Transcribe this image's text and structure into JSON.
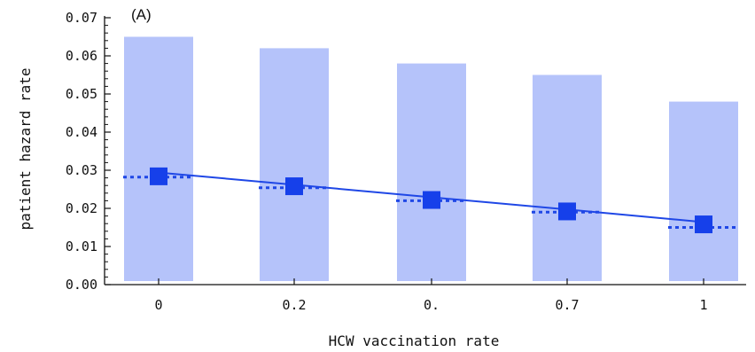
{
  "chart_data": {
    "type": "bar",
    "panel_label": "(A)",
    "xlabel": "HCW vaccination rate",
    "ylabel": "patient hazard rate",
    "categories": [
      "0",
      "0.2",
      "0.",
      "0.7",
      "1"
    ],
    "ylim": [
      0,
      0.07
    ],
    "yticks": [
      "0.00",
      "0.01",
      "0.02",
      "0.03",
      "0.04",
      "0.05",
      "0.06",
      "0.07"
    ],
    "grid": false,
    "legend": "none",
    "series": [
      {
        "kind": "bar",
        "values": [
          0.065,
          0.062,
          0.058,
          0.055,
          0.048
        ]
      },
      {
        "kind": "square-markers",
        "values": [
          0.0284,
          0.0258,
          0.0222,
          0.0192,
          0.0158
        ]
      },
      {
        "kind": "fitted-line",
        "values": [
          0.0294,
          0.0262,
          0.0229,
          0.0197,
          0.0164
        ]
      },
      {
        "kind": "dotted-segments",
        "values": [
          0.0282,
          0.0254,
          0.022,
          0.019,
          0.015
        ]
      }
    ],
    "colors": {
      "bar": "#b5c3fa",
      "marker": "#1640ea",
      "line": "#1f47e6",
      "dotted": "#1f47e6",
      "axis": "#111111"
    }
  }
}
